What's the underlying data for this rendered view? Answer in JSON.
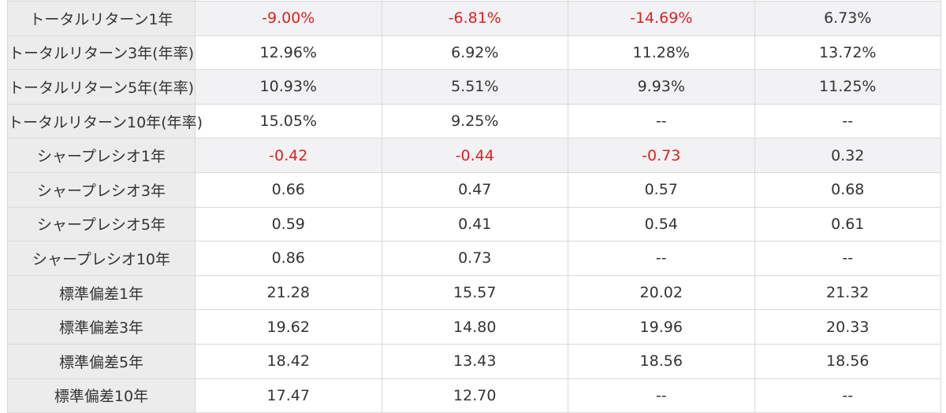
{
  "rows": [
    {
      "label": "トータルリターン1年",
      "values": [
        "-9.00%",
        "-6.81%",
        "-14.69%",
        "6.73%"
      ],
      "negative": [
        true,
        true,
        true,
        false
      ],
      "shaded": true
    },
    {
      "label": "トータルリターン3年(年率)",
      "values": [
        "12.96%",
        "6.92%",
        "11.28%",
        "13.72%"
      ],
      "negative": [
        false,
        false,
        false,
        false
      ],
      "shaded": false
    },
    {
      "label": "トータルリターン5年(年率)",
      "values": [
        "10.93%",
        "5.51%",
        "9.93%",
        "11.25%"
      ],
      "negative": [
        false,
        false,
        false,
        false
      ],
      "shaded": true
    },
    {
      "label": "トータルリターン10年(年率)",
      "values": [
        "15.05%",
        "9.25%",
        "--",
        "--"
      ],
      "negative": [
        false,
        false,
        false,
        false
      ],
      "shaded": false
    },
    {
      "label": "シャープレシオ1年",
      "values": [
        "-0.42",
        "-0.44",
        "-0.73",
        "0.32"
      ],
      "negative": [
        true,
        true,
        true,
        false
      ],
      "shaded": true
    },
    {
      "label": "シャープレシオ3年",
      "values": [
        "0.66",
        "0.47",
        "0.57",
        "0.68"
      ],
      "negative": [
        false,
        false,
        false,
        false
      ],
      "shaded": false
    },
    {
      "label": "シャープレシオ5年",
      "values": [
        "0.59",
        "0.41",
        "0.54",
        "0.61"
      ],
      "negative": [
        false,
        false,
        false,
        false
      ],
      "shaded": false
    },
    {
      "label": "シャープレシオ10年",
      "values": [
        "0.86",
        "0.73",
        "--",
        "--"
      ],
      "negative": [
        false,
        false,
        false,
        false
      ],
      "shaded": false
    },
    {
      "label": "標準偏差1年",
      "values": [
        "21.28",
        "15.57",
        "20.02",
        "21.32"
      ],
      "negative": [
        false,
        false,
        false,
        false
      ],
      "shaded": false
    },
    {
      "label": "標準偏差3年",
      "values": [
        "19.62",
        "14.80",
        "19.96",
        "20.33"
      ],
      "negative": [
        false,
        false,
        false,
        false
      ],
      "shaded": false
    },
    {
      "label": "標準偏差5年",
      "values": [
        "18.42",
        "13.43",
        "18.56",
        "18.56"
      ],
      "negative": [
        false,
        false,
        false,
        false
      ],
      "shaded": false
    },
    {
      "label": "標準偏差10年",
      "values": [
        "17.47",
        "12.70",
        "--",
        "--"
      ],
      "negative": [
        false,
        false,
        false,
        false
      ],
      "shaded": false
    }
  ],
  "colors": {
    "negative": "#e02020",
    "label_bg": "#ececec",
    "shaded_bg": "#f2f2f4",
    "border": "#d9d9d9"
  }
}
